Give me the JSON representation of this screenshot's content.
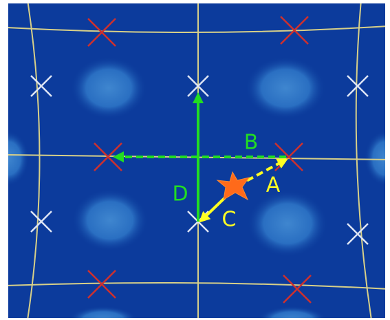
{
  "labels": [
    {
      "text": "A"
    },
    {
      "text": "B"
    },
    {
      "text": "C"
    },
    {
      "text": "D"
    }
  ]
}
